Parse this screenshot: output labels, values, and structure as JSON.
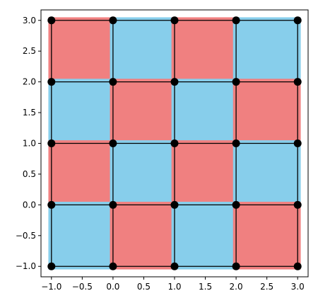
{
  "chart_data": {
    "type": "heatmap",
    "title": "",
    "xlabel": "",
    "ylabel": "",
    "xlim": [
      -1.17,
      3.17
    ],
    "ylim": [
      -1.17,
      3.17
    ],
    "grid": false,
    "legend": "none",
    "x_ticks": [
      -1.0,
      -0.5,
      0.0,
      0.5,
      1.0,
      1.5,
      2.0,
      2.5,
      3.0
    ],
    "x_tick_labels": [
      "−1.0",
      "−0.5",
      "0.0",
      "0.5",
      "1.0",
      "1.5",
      "2.0",
      "2.5",
      "3.0"
    ],
    "y_ticks": [
      -1.0,
      -0.5,
      0.0,
      0.5,
      1.0,
      1.5,
      2.0,
      2.5,
      3.0
    ],
    "y_tick_labels": [
      "−1.0",
      "−0.5",
      "0.0",
      "0.5",
      "1.0",
      "1.5",
      "2.0",
      "2.5",
      "3.0"
    ],
    "grid_lines": [
      -1,
      0,
      1,
      2,
      3
    ],
    "colors": {
      "red": "#f08080",
      "blue": "#87ceeb",
      "line": "#000000",
      "marker": "#000000"
    },
    "cells": [
      {
        "x0": -1,
        "x1": 0,
        "y0": 2,
        "y1": 3,
        "color": "red"
      },
      {
        "x0": 0,
        "x1": 1,
        "y0": 2,
        "y1": 3,
        "color": "blue"
      },
      {
        "x0": 1,
        "x1": 2,
        "y0": 2,
        "y1": 3,
        "color": "red"
      },
      {
        "x0": 2,
        "x1": 3,
        "y0": 2,
        "y1": 3,
        "color": "blue"
      },
      {
        "x0": -1,
        "x1": 0,
        "y0": 1,
        "y1": 2,
        "color": "blue"
      },
      {
        "x0": 0,
        "x1": 1,
        "y0": 1,
        "y1": 2,
        "color": "red"
      },
      {
        "x0": 1,
        "x1": 2,
        "y0": 1,
        "y1": 2,
        "color": "blue"
      },
      {
        "x0": 2,
        "x1": 3,
        "y0": 1,
        "y1": 2,
        "color": "red"
      },
      {
        "x0": -1,
        "x1": 0,
        "y0": 0,
        "y1": 1,
        "color": "red"
      },
      {
        "x0": 0,
        "x1": 1,
        "y0": 0,
        "y1": 1,
        "color": "blue"
      },
      {
        "x0": 1,
        "x1": 2,
        "y0": 0,
        "y1": 1,
        "color": "red"
      },
      {
        "x0": 2,
        "x1": 3,
        "y0": 0,
        "y1": 1,
        "color": "blue"
      },
      {
        "x0": -1,
        "x1": 0,
        "y0": -1,
        "y1": 0,
        "color": "blue"
      },
      {
        "x0": 0,
        "x1": 1,
        "y0": -1,
        "y1": 0,
        "color": "red"
      },
      {
        "x0": 1,
        "x1": 2,
        "y0": -1,
        "y1": 0,
        "color": "blue"
      },
      {
        "x0": 2,
        "x1": 3,
        "y0": -1,
        "y1": 0,
        "color": "red"
      }
    ],
    "points": [
      [
        -1,
        3
      ],
      [
        0,
        3
      ],
      [
        1,
        3
      ],
      [
        2,
        3
      ],
      [
        3,
        3
      ],
      [
        -1,
        2
      ],
      [
        0,
        2
      ],
      [
        1,
        2
      ],
      [
        2,
        2
      ],
      [
        3,
        2
      ],
      [
        -1,
        1
      ],
      [
        0,
        1
      ],
      [
        1,
        1
      ],
      [
        2,
        1
      ],
      [
        3,
        1
      ],
      [
        -1,
        0
      ],
      [
        0,
        0
      ],
      [
        1,
        0
      ],
      [
        2,
        0
      ],
      [
        3,
        0
      ],
      [
        -1,
        -1
      ],
      [
        0,
        -1
      ],
      [
        1,
        -1
      ],
      [
        2,
        -1
      ],
      [
        3,
        -1
      ]
    ]
  }
}
